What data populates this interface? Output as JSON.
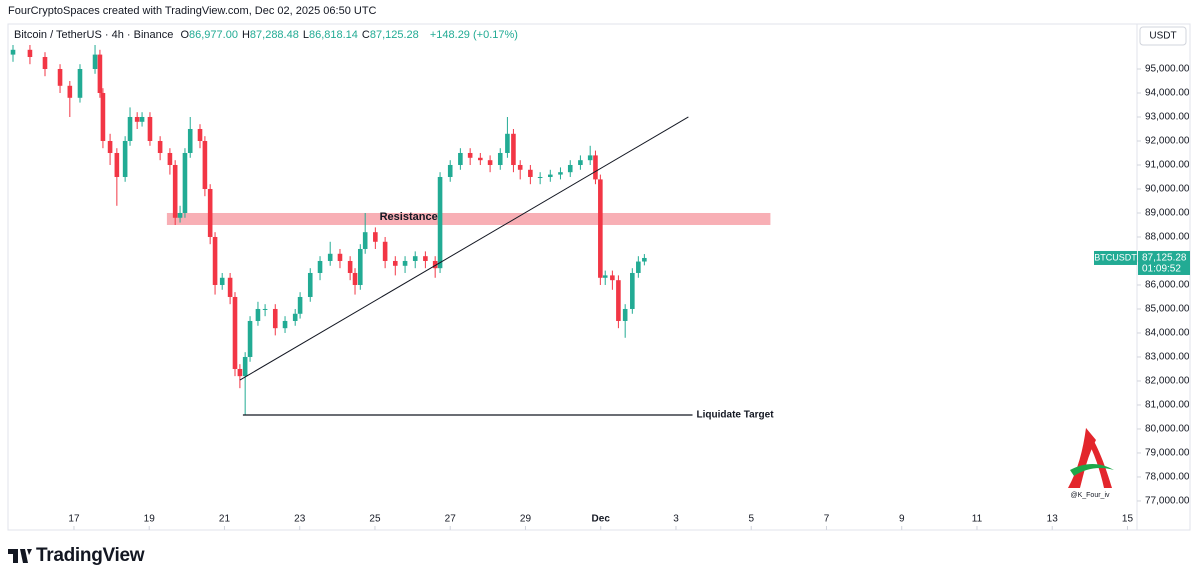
{
  "chart_data": {
    "type": "candlestick",
    "credit": "FourCryptoSpaces created with TradingView.com, Dec 02, 2025 06:50 UTC",
    "header": {
      "symbol": "Bitcoin / TetherUS · 4h · Binance",
      "ohlc": [
        {
          "key": "O",
          "value": "86,977.00"
        },
        {
          "key": "H",
          "value": "87,288.48"
        },
        {
          "key": "L",
          "value": "86,818.14"
        },
        {
          "key": "C",
          "value": "87,125.28"
        }
      ],
      "change": "+148.29 (+0.17%)"
    },
    "currency": "USDT",
    "footer": "TradingView",
    "watermark": "@K_Four_iv",
    "up_color": "#22ab94",
    "down_color": "#f23645",
    "grid": false,
    "xlim": [
      15.3,
      45.2
    ],
    "xticks": [
      17,
      19,
      21,
      23,
      25,
      27,
      29,
      {
        "value": 31,
        "label": "Dec"
      },
      {
        "value": 33,
        "label": "3"
      },
      {
        "value": 35,
        "label": "5"
      },
      {
        "value": 37,
        "label": "7"
      },
      {
        "value": 39,
        "label": "9"
      },
      {
        "value": 41,
        "label": "11"
      },
      {
        "value": 43,
        "label": "13"
      },
      {
        "value": 45,
        "label": "15"
      }
    ],
    "ylim": [
      75790,
      96625
    ],
    "yticks": [
      {
        "value": 77000,
        "label": "77,000.00"
      },
      {
        "value": 78000,
        "label": "78,000.00"
      },
      {
        "value": 79000,
        "label": "79,000.00"
      },
      {
        "value": 80000,
        "label": "80,000.00"
      },
      {
        "value": 81000,
        "label": "81,000.00"
      },
      {
        "value": 82000,
        "label": "82,000.00"
      },
      {
        "value": 83000,
        "label": "83,000.00"
      },
      {
        "value": 84000,
        "label": "84,000.00"
      },
      {
        "value": 85000,
        "label": "85,000.00"
      },
      {
        "value": 86000,
        "label": "86,000.00"
      },
      {
        "value": 87000,
        "label": "87,000.00"
      },
      {
        "value": 88000,
        "label": "88,000.00"
      },
      {
        "value": 89000,
        "label": "89,000.00"
      },
      {
        "value": 90000,
        "label": "90,000.00"
      },
      {
        "value": 91000,
        "label": "91,000.00"
      },
      {
        "value": 92000,
        "label": "92,000.00"
      },
      {
        "value": 93000,
        "label": "93,000.00"
      },
      {
        "value": 94000,
        "label": "94,000.00"
      },
      {
        "value": 95000,
        "label": "95,000.00"
      }
    ],
    "x": [
      15.38,
      15.83,
      16.23,
      16.63,
      16.89,
      17.16,
      17.56,
      17.69,
      17.77,
      17.96,
      18.14,
      18.36,
      18.49,
      18.68,
      18.81,
      19.02,
      19.29,
      19.55,
      19.69,
      19.82,
      19.95,
      20.09,
      20.35,
      20.48,
      20.62,
      20.75,
      20.94,
      21.15,
      21.28,
      21.41,
      21.55,
      21.68,
      21.89,
      22.08,
      22.35,
      22.61,
      22.88,
      23.01,
      23.28,
      23.54,
      23.81,
      24.07,
      24.34,
      24.47,
      24.61,
      24.74,
      25.01,
      25.27,
      25.54,
      25.8,
      26.07,
      26.34,
      26.6,
      26.73,
      27.0,
      27.27,
      27.53,
      27.8,
      28.06,
      28.33,
      28.52,
      28.68,
      28.86,
      29.13,
      29.39,
      29.66,
      29.93,
      30.19,
      30.46,
      30.72,
      30.86,
      30.99,
      31.12,
      31.31,
      31.47,
      31.65,
      31.84,
      32.0,
      32.16
    ],
    "open": [
      95600,
      95800,
      95500,
      95000,
      94300,
      93800,
      95000,
      95600,
      94000,
      92000,
      91500,
      90500,
      92000,
      93000,
      92800,
      93000,
      92000,
      91500,
      91000,
      88800,
      89000,
      91500,
      92500,
      92000,
      90000,
      88000,
      86000,
      86300,
      85500,
      82500,
      82200,
      83000,
      84500,
      85000,
      85000,
      84200,
      84500,
      84800,
      85500,
      86500,
      87000,
      87300,
      87000,
      86500,
      86000,
      87500,
      88200,
      87800,
      87000,
      86800,
      87000,
      87200,
      87000,
      86700,
      90500,
      91000,
      91500,
      91300,
      91200,
      91000,
      91500,
      92300,
      91000,
      90800,
      90500,
      90500,
      90600,
      90700,
      91000,
      91200,
      91400,
      90400,
      86300,
      86400,
      86200,
      84500,
      85000,
      86500,
      86977
    ],
    "high": [
      96000,
      96000,
      95700,
      95200,
      94500,
      95200,
      96000,
      95800,
      94200,
      92300,
      91700,
      92200,
      93400,
      93200,
      93200,
      93200,
      92200,
      91700,
      91200,
      89300,
      91700,
      93000,
      92700,
      92200,
      90200,
      88200,
      86500,
      86500,
      85700,
      82700,
      83200,
      84700,
      85300,
      85200,
      85200,
      84700,
      85000,
      85700,
      86700,
      87200,
      87800,
      87500,
      87200,
      86700,
      87700,
      89000,
      88400,
      88000,
      87200,
      87200,
      87400,
      87400,
      87200,
      90700,
      91200,
      91700,
      91700,
      91500,
      91400,
      91700,
      93000,
      92500,
      91200,
      91000,
      90700,
      90800,
      90900,
      91200,
      91400,
      91800,
      91600,
      90600,
      86600,
      86600,
      86400,
      85200,
      86700,
      87200,
      87288.48
    ],
    "low": [
      95300,
      95200,
      94700,
      94000,
      93000,
      93600,
      94800,
      93800,
      91700,
      91000,
      89300,
      90300,
      91800,
      92500,
      92600,
      91800,
      91200,
      90600,
      88500,
      88600,
      88800,
      91300,
      91700,
      89700,
      87700,
      85600,
      85800,
      85200,
      82200,
      81700,
      80600,
      82800,
      84300,
      84700,
      83900,
      84000,
      84300,
      84600,
      85300,
      86200,
      86800,
      86700,
      86200,
      85600,
      85800,
      87300,
      87500,
      86700,
      86400,
      86500,
      86700,
      86700,
      86300,
      86500,
      90300,
      90800,
      91000,
      91000,
      90700,
      90800,
      91300,
      90700,
      90400,
      90200,
      90200,
      90300,
      90400,
      90500,
      90800,
      91000,
      90200,
      86000,
      86000,
      85800,
      84200,
      83800,
      84800,
      86300,
      86818.14
    ],
    "close": [
      95800,
      95500,
      95000,
      94300,
      93800,
      95000,
      95600,
      94000,
      92000,
      91500,
      90500,
      92000,
      93000,
      92800,
      93000,
      92000,
      91500,
      91000,
      88800,
      89000,
      91500,
      92500,
      92000,
      90000,
      88000,
      86000,
      86300,
      85500,
      82500,
      82200,
      83000,
      84500,
      85000,
      85000,
      84200,
      84500,
      84800,
      85500,
      86500,
      87000,
      87300,
      87000,
      86500,
      86000,
      87500,
      88200,
      87800,
      87000,
      86800,
      87000,
      87200,
      87000,
      86700,
      90500,
      91000,
      91500,
      91300,
      91200,
      91000,
      91500,
      92300,
      91000,
      90800,
      90500,
      90500,
      90600,
      90700,
      91000,
      91200,
      91400,
      90400,
      86300,
      86400,
      86200,
      84500,
      85000,
      86500,
      86977,
      87125.28
    ],
    "price_tag": {
      "symbol": "BTCUSDT",
      "value": 87125.28,
      "label": "87,125.28",
      "countdown": "01:09:52"
    },
    "annotations": {
      "resistance": {
        "label": "Resistance",
        "x": [
          19.47,
          35.51
        ],
        "y": [
          88500,
          89000
        ],
        "color": "#f7a1a8"
      },
      "trendline": {
        "x": [
          21.41,
          33.33
        ],
        "y": [
          82040,
          93000
        ]
      },
      "liquidate": {
        "label": "Liquidate Target",
        "x": [
          21.49,
          33.44
        ],
        "y": 80583
      }
    }
  }
}
